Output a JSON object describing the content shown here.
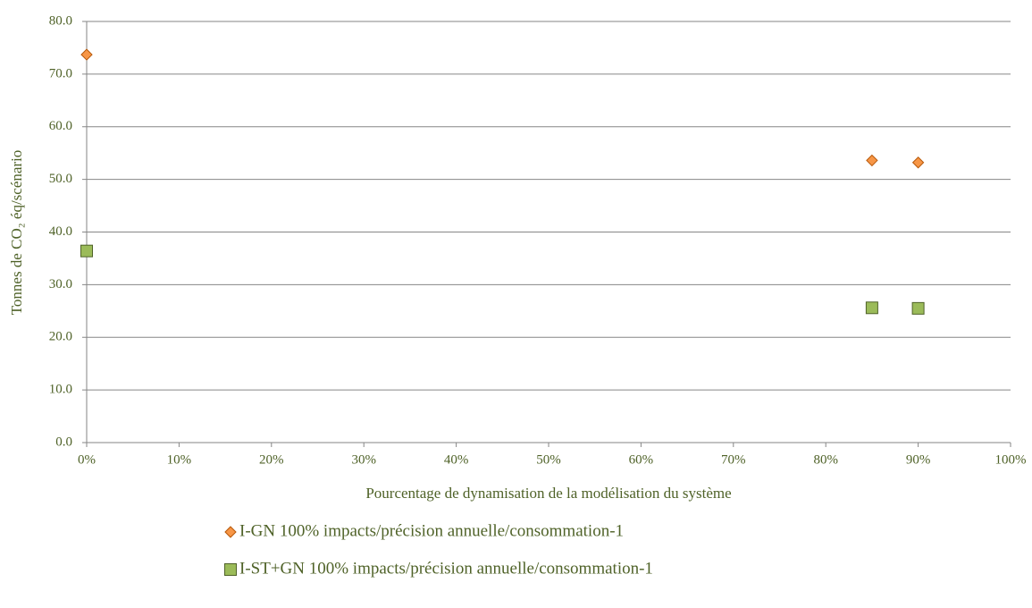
{
  "chart_data": {
    "type": "scatter",
    "xlabel": "Pourcentage de dynamisation de la modélisation du système",
    "ylabel": "Tonnes de CO₂ éq/scénario",
    "xlim": [
      0,
      100
    ],
    "xticks": [
      {
        "value": 0,
        "label": "0%"
      },
      {
        "value": 10,
        "label": "10%"
      },
      {
        "value": 20,
        "label": "20%"
      },
      {
        "value": 30,
        "label": "30%"
      },
      {
        "value": 40,
        "label": "40%"
      },
      {
        "value": 50,
        "label": "50%"
      },
      {
        "value": 60,
        "label": "60%"
      },
      {
        "value": 70,
        "label": "70%"
      },
      {
        "value": 80,
        "label": "80%"
      },
      {
        "value": 90,
        "label": "90%"
      },
      {
        "value": 100,
        "label": "100%"
      }
    ],
    "ylim": [
      0,
      80
    ],
    "yticks": [
      {
        "value": 0,
        "label": "0.0"
      },
      {
        "value": 10,
        "label": "10.0"
      },
      {
        "value": 20,
        "label": "20.0"
      },
      {
        "value": 30,
        "label": "30.0"
      },
      {
        "value": 40,
        "label": "40.0"
      },
      {
        "value": 50,
        "label": "50.0"
      },
      {
        "value": 60,
        "label": "60.0"
      },
      {
        "value": 70,
        "label": "70.0"
      },
      {
        "value": 80,
        "label": "80.0"
      }
    ],
    "grid": true,
    "legend": "bottom",
    "series": [
      {
        "name": "I-GN 100% impacts/précision annuelle/consommation-1",
        "color": "#f79646",
        "marker": "diamond",
        "x": [
          0,
          85,
          90
        ],
        "values": [
          73.7,
          53.6,
          53.2
        ]
      },
      {
        "name": "I-ST+GN 100% impacts/précision annuelle/consommation-1",
        "color": "#9bbb59",
        "marker": "square",
        "x": [
          0,
          85,
          90
        ],
        "values": [
          36.4,
          25.6,
          25.5
        ]
      }
    ]
  }
}
